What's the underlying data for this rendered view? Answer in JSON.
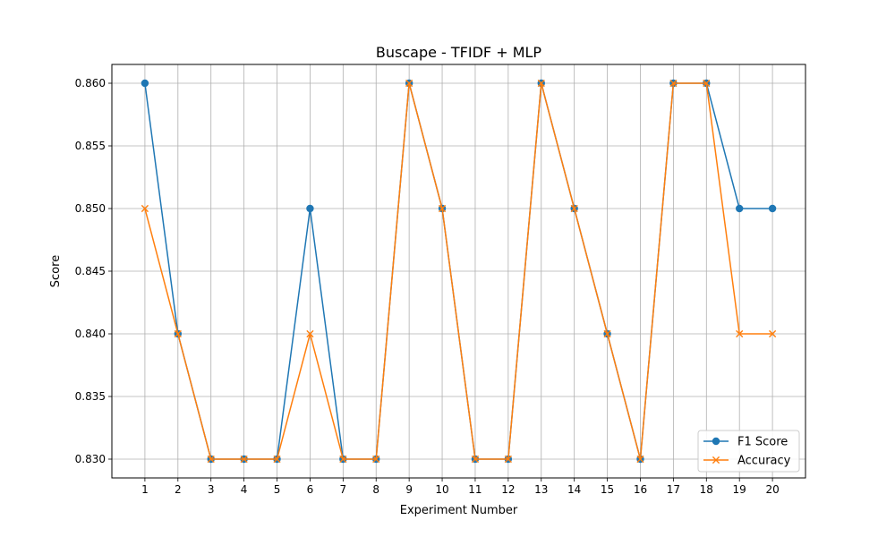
{
  "chart_data": {
    "type": "line",
    "title": "Buscape - TFIDF + MLP",
    "xlabel": "Experiment Number",
    "ylabel": "Score",
    "x": [
      1,
      2,
      3,
      4,
      5,
      6,
      7,
      8,
      9,
      10,
      11,
      12,
      13,
      14,
      15,
      16,
      17,
      18,
      19,
      20
    ],
    "x_tick_labels": [
      "1",
      "2",
      "3",
      "4",
      "5",
      "6",
      "7",
      "8",
      "9",
      "10",
      "11",
      "12",
      "13",
      "14",
      "15",
      "16",
      "17",
      "18",
      "19",
      "20"
    ],
    "y_ticks": [
      0.83,
      0.835,
      0.84,
      0.845,
      0.85,
      0.855,
      0.86
    ],
    "y_tick_labels": [
      "0.830",
      "0.835",
      "0.840",
      "0.845",
      "0.850",
      "0.855",
      "0.860"
    ],
    "xlim": [
      0.0,
      21.0
    ],
    "ylim": [
      0.8285,
      0.8615
    ],
    "grid": true,
    "legend_position": "lower-right",
    "series": [
      {
        "name": "F1 Score",
        "color": "#1f77b4",
        "marker": "circle",
        "values": [
          0.86,
          0.84,
          0.83,
          0.83,
          0.83,
          0.85,
          0.83,
          0.83,
          0.86,
          0.85,
          0.83,
          0.83,
          0.86,
          0.85,
          0.84,
          0.83,
          0.86,
          0.86,
          0.85,
          0.85
        ]
      },
      {
        "name": "Accuracy",
        "color": "#ff7f0e",
        "marker": "x",
        "values": [
          0.85,
          0.84,
          0.83,
          0.83,
          0.83,
          0.84,
          0.83,
          0.83,
          0.86,
          0.85,
          0.83,
          0.83,
          0.86,
          0.85,
          0.84,
          0.83,
          0.86,
          0.86,
          0.84,
          0.84
        ]
      }
    ]
  }
}
